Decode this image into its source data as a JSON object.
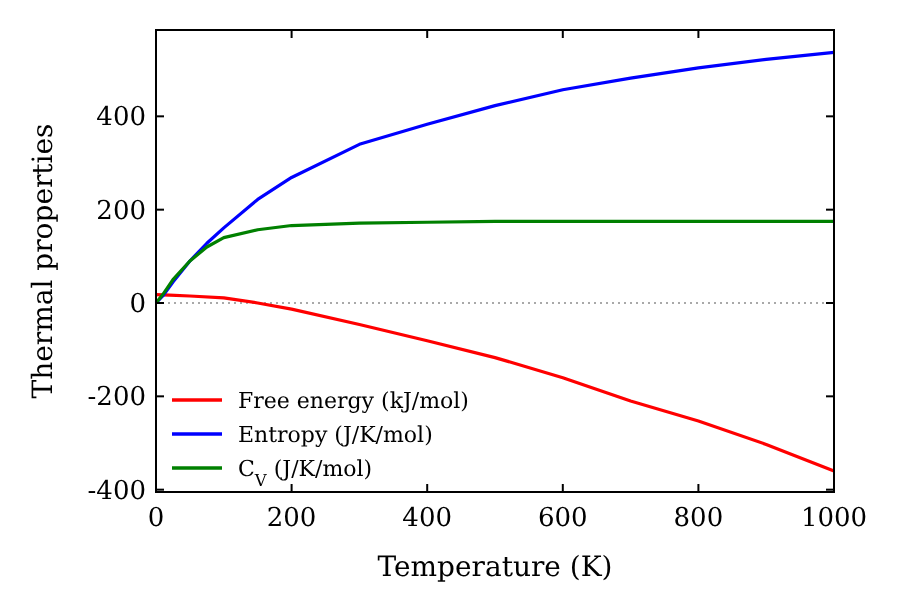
{
  "chart_data": {
    "type": "line",
    "xlabel": "Temperature (K)",
    "ylabel": "Thermal properties",
    "xlim": [
      0,
      1000
    ],
    "ylim": [
      -405,
      585
    ],
    "xticks": [
      0,
      200,
      400,
      600,
      800,
      1000
    ],
    "yticks": [
      -400,
      -200,
      0,
      200,
      400
    ],
    "legend": "lower left",
    "line_style": "solid",
    "marker": "none",
    "ref_lines": [
      {
        "axis": "y",
        "value": 0,
        "color": "#555555",
        "line_style": "dotted"
      }
    ],
    "series": [
      {
        "name": "Free energy (kJ/mol)",
        "color": "#ff0000",
        "x": [
          0,
          20,
          50,
          100,
          150,
          200,
          300,
          400,
          500,
          600,
          700,
          800,
          900,
          1000
        ],
        "values": [
          18,
          17,
          15,
          11,
          0,
          -13,
          -46,
          -81,
          -117,
          -160,
          -210,
          -253,
          -303,
          -360
        ]
      },
      {
        "name": "Entropy (J/K/mol)",
        "color": "#0000ff",
        "x": [
          0,
          10,
          25,
          50,
          75,
          100,
          150,
          200,
          300,
          400,
          500,
          600,
          700,
          800,
          900,
          1000
        ],
        "values": [
          0,
          15,
          45,
          90,
          128,
          161,
          222,
          269,
          340,
          383,
          423,
          457,
          482,
          504,
          522,
          537
        ]
      },
      {
        "name": "C$_{V}$ (J/K/mol)",
        "color": "#008000",
        "x": [
          0,
          10,
          25,
          50,
          75,
          100,
          150,
          200,
          300,
          400,
          500,
          600,
          800,
          1000
        ],
        "values": [
          0,
          18,
          50,
          90,
          120,
          140,
          157,
          166,
          171,
          173,
          175,
          175,
          175,
          175
        ]
      }
    ]
  }
}
